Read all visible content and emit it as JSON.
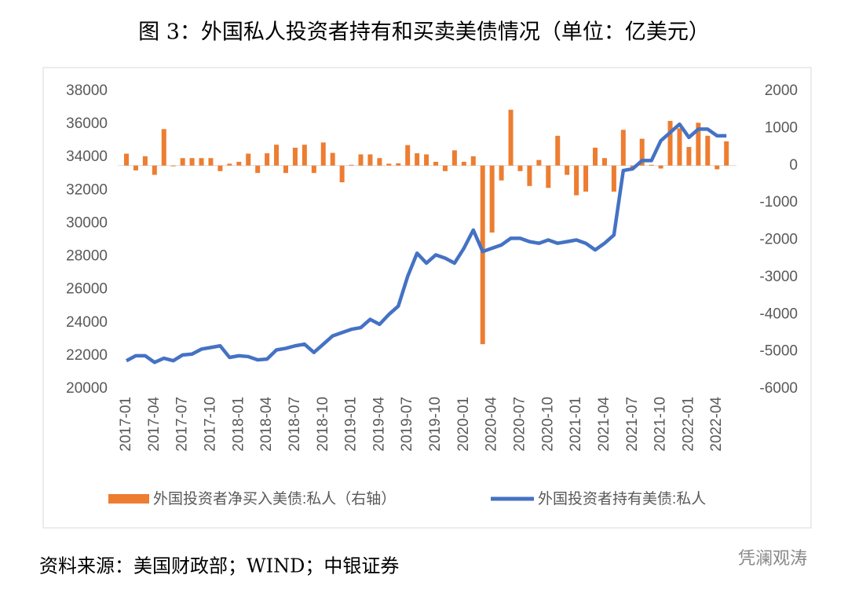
{
  "chart_data": {
    "type": "bar-line",
    "title": "图 3：外国私人投资者持有和买卖美债情况（单位：亿美元）",
    "source": "资料来源：美国财政部；WIND；中银证券",
    "watermark": "凭澜观涛",
    "categories": [
      "2017-01",
      null,
      null,
      "2017-04",
      null,
      null,
      "2017-07",
      null,
      null,
      "2017-10",
      null,
      null,
      "2018-01",
      null,
      null,
      "2018-04",
      null,
      null,
      "2018-07",
      null,
      null,
      "2018-10",
      null,
      null,
      "2019-01",
      null,
      null,
      "2019-04",
      null,
      null,
      "2019-07",
      null,
      null,
      "2019-10",
      null,
      null,
      "2020-01",
      null,
      null,
      "2020-04",
      null,
      null,
      "2020-07",
      null,
      null,
      "2020-10",
      null,
      null,
      "2021-01",
      null,
      null,
      "2021-04",
      null,
      null,
      "2021-07",
      null,
      null,
      "2021-10",
      null,
      null,
      "2022-01",
      null,
      null,
      "2022-04",
      null
    ],
    "ylim": [
      20000,
      38000
    ],
    "yticks": [
      20000,
      22000,
      24000,
      26000,
      28000,
      30000,
      32000,
      34000,
      36000,
      38000
    ],
    "y2lim": [
      -6000,
      2000
    ],
    "y2ticks": [
      -6000,
      -5000,
      -4000,
      -3000,
      -2000,
      -1000,
      0,
      1000,
      2000
    ],
    "series": [
      {
        "name": "外国投资者净买入美债:私人（右轴）",
        "type": "bar",
        "axis": "y2",
        "color": "#ed7d31",
        "values": [
          320,
          -130,
          250,
          -250,
          980,
          -20,
          200,
          200,
          200,
          200,
          -150,
          50,
          100,
          320,
          -200,
          330,
          560,
          -200,
          480,
          560,
          -200,
          620,
          340,
          -450,
          20,
          300,
          300,
          200,
          50,
          60,
          550,
          330,
          300,
          100,
          -150,
          410,
          100,
          250,
          -4800,
          -1800,
          -400,
          1500,
          -150,
          -550,
          150,
          -600,
          800,
          -250,
          -800,
          -700,
          480,
          200,
          -700,
          960,
          -100,
          720,
          20,
          -80,
          1200,
          1000,
          500,
          1150,
          800,
          -100,
          650
        ]
      },
      {
        "name": "外国投资者持有美债:私人",
        "type": "line",
        "color": "#4472c4",
        "values": [
          21700,
          22000,
          22000,
          21600,
          21850,
          21700,
          22050,
          22100,
          22400,
          22500,
          22600,
          21900,
          22000,
          21950,
          21750,
          21800,
          22350,
          22450,
          22600,
          22700,
          22200,
          22700,
          23200,
          23400,
          23600,
          23700,
          24200,
          23900,
          24500,
          25000,
          26800,
          28200,
          27600,
          28100,
          27900,
          27600,
          28500,
          29600,
          28300,
          28500,
          28700,
          29100,
          29100,
          28900,
          28800,
          29000,
          28800,
          28900,
          29000,
          28800,
          28400,
          28800,
          29300,
          33200,
          33300,
          33800,
          33800,
          35000,
          35500,
          36000,
          35200,
          35700,
          35700,
          35300,
          35300
        ]
      }
    ]
  }
}
